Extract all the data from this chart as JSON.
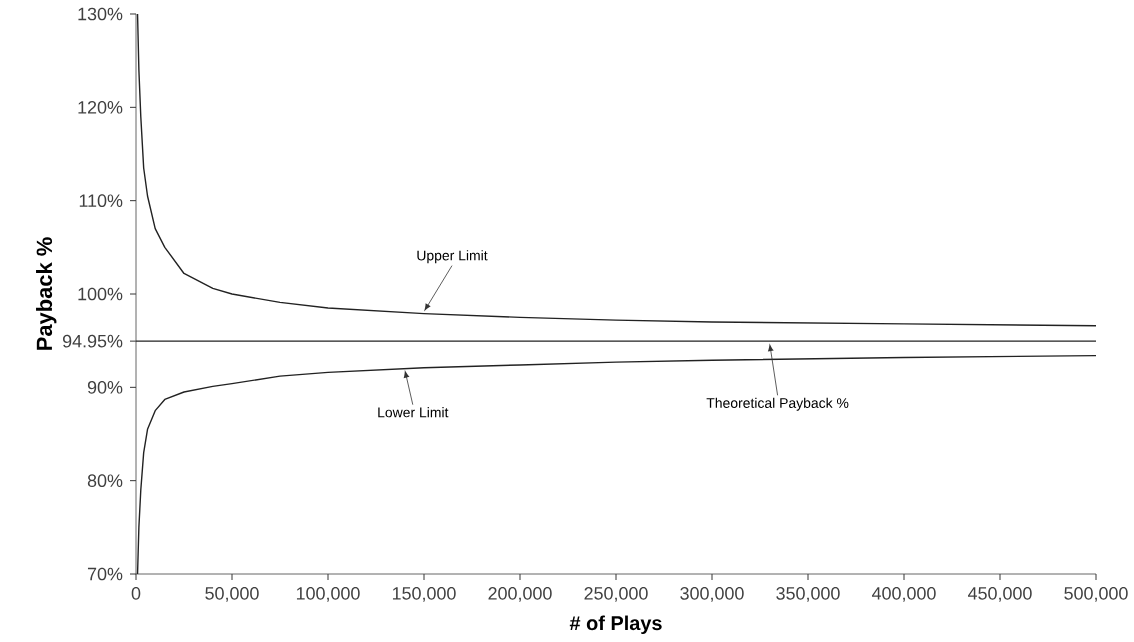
{
  "chart_data": {
    "type": "line",
    "xlabel": "# of Plays",
    "ylabel": "Payback %",
    "xlim": [
      0,
      500000
    ],
    "ylim": [
      70,
      130
    ],
    "xticks": [
      0,
      {
        "value": 50000,
        "label": "50,000"
      },
      {
        "value": 100000,
        "label": "100,000"
      },
      {
        "value": 150000,
        "label": "150,000"
      },
      {
        "value": 200000,
        "label": "200,000"
      },
      {
        "value": 250000,
        "label": "250,000"
      },
      {
        "value": 300000,
        "label": "300,000"
      },
      {
        "value": 350000,
        "label": "350,000"
      },
      {
        "value": 400000,
        "label": "400,000"
      },
      {
        "value": 450000,
        "label": "450,000"
      },
      {
        "value": 500000,
        "label": "500,000"
      }
    ],
    "yticks": [
      {
        "value": 70,
        "label": "70%"
      },
      {
        "value": 80,
        "label": "80%"
      },
      {
        "value": 90,
        "label": "90%"
      },
      {
        "value": 94.95,
        "label": "94.95%"
      },
      {
        "value": 100,
        "label": "100%"
      },
      {
        "value": 110,
        "label": "110%"
      },
      {
        "value": 120,
        "label": "120%"
      },
      {
        "value": 130,
        "label": "130%"
      }
    ],
    "grid": false,
    "series": [
      {
        "color": "#222222",
        "x": [
          800,
          1500,
          2500,
          4000,
          6000,
          10000,
          15000,
          25000,
          40000,
          50000,
          75000,
          100000,
          150000,
          200000,
          250000,
          300000,
          400000,
          500000
        ],
        "values": [
          130,
          124,
          119,
          113.5,
          110.5,
          107,
          105,
          102.2,
          100.6,
          100,
          99.1,
          98.5,
          97.9,
          97.5,
          97.2,
          97.0,
          96.8,
          96.6
        ]
      },
      {
        "color": "#222222",
        "x": [
          0,
          500000
        ],
        "values": [
          94.95,
          94.95
        ]
      },
      {
        "color": "#222222",
        "x": [
          800,
          1500,
          2500,
          4000,
          6000,
          10000,
          15000,
          25000,
          40000,
          50000,
          75000,
          100000,
          150000,
          200000,
          250000,
          300000,
          400000,
          500000
        ],
        "values": [
          70,
          75,
          79,
          83,
          85.5,
          87.5,
          88.7,
          89.5,
          90.1,
          90.4,
          91.2,
          91.6,
          92.1,
          92.4,
          92.7,
          92.9,
          93.2,
          93.4
        ]
      }
    ],
    "annotations": [
      {
        "text": "Upper Limit",
        "x": 150000,
        "y": 97.9
      },
      {
        "text": "Lower Limit",
        "x": 140000,
        "y": 92.1
      },
      {
        "text": "Theoretical Payback %",
        "x": 330000,
        "y": 94.95
      }
    ]
  }
}
